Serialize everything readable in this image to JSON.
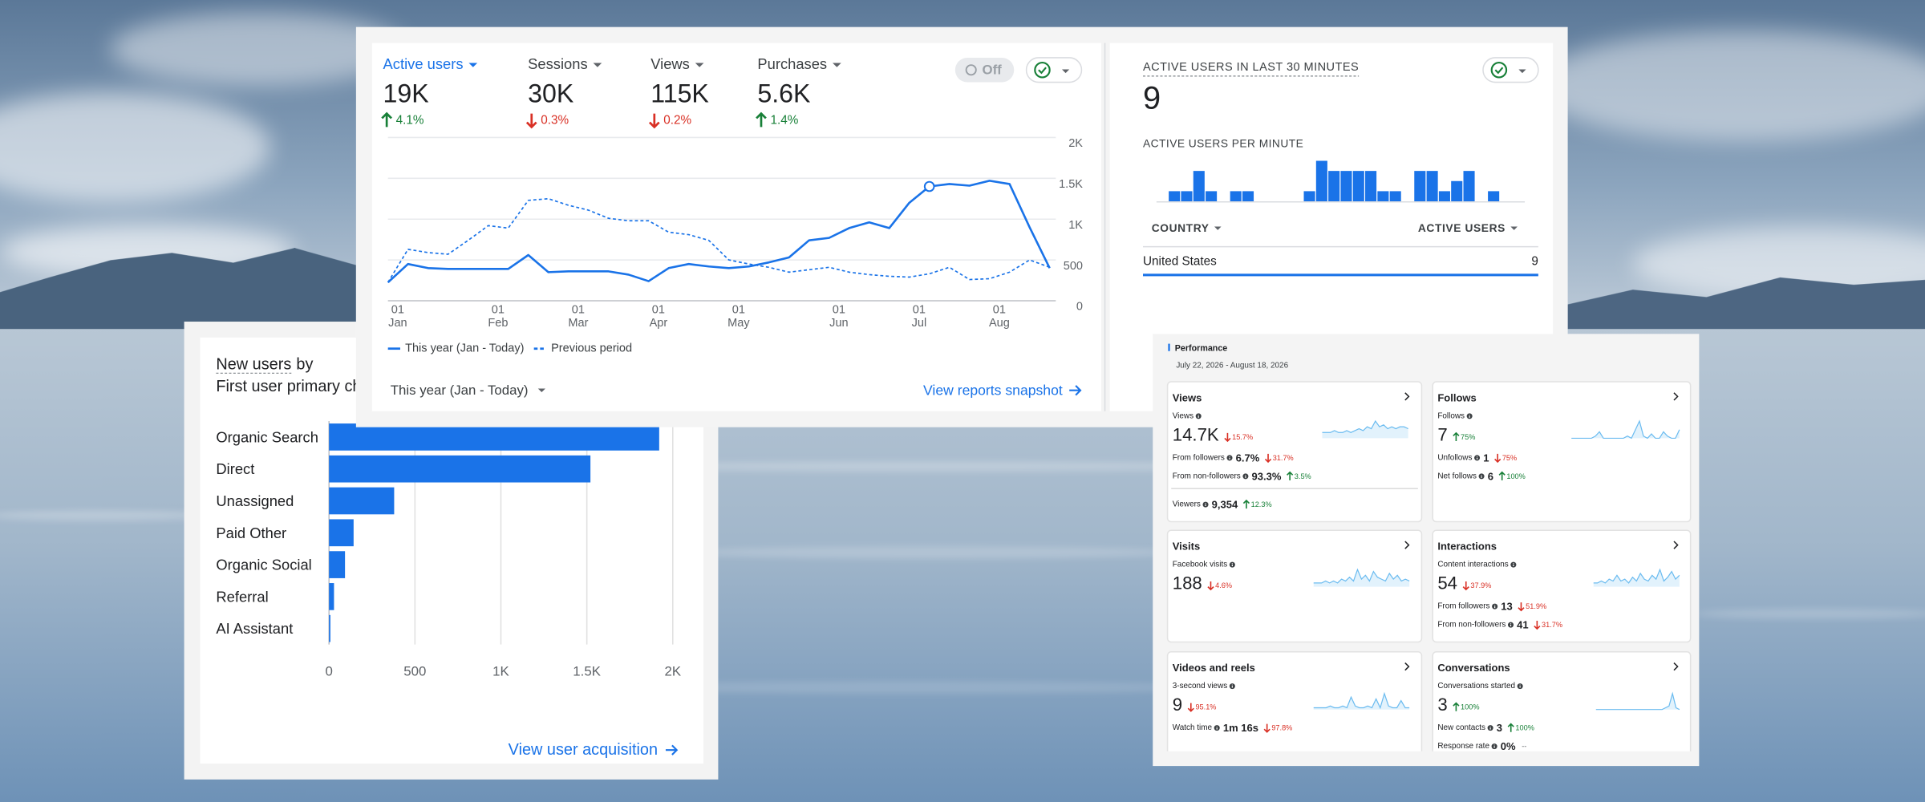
{
  "overview": {
    "metrics": [
      {
        "label": "Active users",
        "value": "19K",
        "change": "4.1%",
        "dir": "up"
      },
      {
        "label": "Sessions",
        "value": "30K",
        "change": "0.3%",
        "dir": "down"
      },
      {
        "label": "Views",
        "value": "115K",
        "change": "0.2%",
        "dir": "down"
      },
      {
        "label": "Purchases",
        "value": "5.6K",
        "change": "1.4%",
        "dir": "up"
      }
    ],
    "toggle": "Off",
    "period": "This year (Jan - Today)",
    "link": "View reports snapshot"
  },
  "realtime": {
    "title": "ACTIVE USERS IN LAST 30 MINUTES",
    "value": "9",
    "table": {
      "headers": [
        "COUNTRY",
        "ACTIVE USERS"
      ],
      "rows": [
        [
          "United States",
          9
        ]
      ]
    }
  },
  "acquisition": {
    "title_metric": "New users",
    "title_by": "by",
    "subtitle": "First user primary channel",
    "link": "View user acquisition"
  },
  "performance": {
    "title": "Performance",
    "date_range": "July 22, 2026 - August 18, 2026",
    "cards": [
      {
        "title": "Views",
        "metric": "Views",
        "value": "14.7K",
        "change": "15.7%",
        "dir": "down",
        "rows": [
          {
            "label": "From followers",
            "value": "6.7%",
            "change": "31.7%",
            "dir": "down"
          },
          {
            "label": "From non-followers",
            "value": "93.3%",
            "change": "3.5%",
            "dir": "up"
          },
          {
            "label": "Viewers",
            "value": "9,354",
            "change": "12.3%",
            "dir": "up",
            "separated": true
          }
        ]
      },
      {
        "title": "Follows",
        "metric": "Follows",
        "value": "7",
        "change": "75%",
        "dir": "up",
        "rows": [
          {
            "label": "Unfollows",
            "value": "1",
            "change": "75%",
            "dir": "down"
          },
          {
            "label": "Net follows",
            "value": "6",
            "change": "100%",
            "dir": "up"
          }
        ]
      },
      {
        "title": "Visits",
        "metric": "Facebook visits",
        "value": "188",
        "change": "4.6%",
        "dir": "down",
        "rows": []
      },
      {
        "title": "Interactions",
        "metric": "Content interactions",
        "value": "54",
        "change": "37.9%",
        "dir": "down",
        "rows": [
          {
            "label": "From followers",
            "value": "13",
            "change": "51.9%",
            "dir": "down"
          },
          {
            "label": "From non-followers",
            "value": "41",
            "change": "31.7%",
            "dir": "down"
          }
        ]
      },
      {
        "title": "Videos and reels",
        "metric": "3-second views",
        "value": "9",
        "change": "95.1%",
        "dir": "down",
        "rows": [
          {
            "label": "Watch time",
            "value": "1m 16s",
            "change": "97.8%",
            "dir": "down"
          }
        ]
      },
      {
        "title": "Conversations",
        "metric": "Conversations started",
        "value": "3",
        "change": "100%",
        "dir": "up",
        "rows": [
          {
            "label": "New contacts",
            "value": "3",
            "change": "100%",
            "dir": "up"
          },
          {
            "label": "Response rate",
            "value": "0%",
            "change": "--"
          }
        ]
      }
    ]
  },
  "chart_data": [
    {
      "type": "line",
      "categories": [
        "01 Jan",
        null,
        null,
        null,
        null,
        "01 Feb",
        null,
        null,
        null,
        "01 Mar",
        null,
        null,
        null,
        "01 Apr",
        null,
        null,
        null,
        "01 May",
        null,
        null,
        null,
        null,
        "01 Jun",
        null,
        null,
        null,
        "01 Jul",
        null,
        null,
        null,
        "01 Aug",
        null,
        null,
        null
      ],
      "series": [
        {
          "name": "This year (Jan - Today)",
          "color": "#1a73e8",
          "dashed": false,
          "values": [
            225,
            450,
            400,
            390,
            390,
            390,
            390,
            560,
            350,
            360,
            360,
            360,
            320,
            240,
            400,
            450,
            420,
            400,
            420,
            470,
            530,
            740,
            770,
            890,
            960,
            890,
            1200,
            1400,
            1430,
            1410,
            1470,
            1430,
            900,
            400
          ]
        },
        {
          "name": "Previous period",
          "color": "#1a73e8",
          "dashed": true,
          "values": [
            225,
            630,
            590,
            570,
            740,
            920,
            890,
            1230,
            1250,
            1170,
            1110,
            1010,
            980,
            980,
            840,
            810,
            740,
            500,
            450,
            410,
            350,
            380,
            410,
            350,
            320,
            300,
            290,
            330,
            410,
            260,
            270,
            350,
            500,
            410
          ]
        }
      ],
      "highlight_index": 27,
      "ylim": [
        0,
        2000
      ],
      "yticks": [
        0,
        500,
        {
          "value": 1000,
          "label": "1K"
        },
        {
          "value": 1500,
          "label": "1.5K"
        },
        {
          "value": 2000,
          "label": "2K"
        }
      ],
      "grid": true
    },
    {
      "type": "bar",
      "orientation": "horizontal",
      "categories": [
        "Organic Search",
        "Direct",
        "Unassigned",
        "Paid Other",
        "Organic Social",
        "Referral",
        "AI Assistant"
      ],
      "values": [
        1921,
        1521,
        379,
        143,
        93,
        29,
        8
      ],
      "color": "#1a73e8",
      "xlim": [
        0,
        2000
      ],
      "xticks": [
        0,
        500,
        {
          "value": 1000,
          "label": "1K"
        },
        {
          "value": 1500,
          "label": "1.5K"
        },
        {
          "value": 2000,
          "label": "2K"
        }
      ],
      "grid": true
    },
    {
      "type": "bar",
      "title": "ACTIVE USERS PER MINUTE",
      "values": [
        0,
        1,
        1,
        3,
        1,
        0,
        1,
        1,
        0,
        0,
        0,
        0,
        1,
        4,
        3,
        3,
        3,
        3,
        1,
        1,
        0,
        3,
        3,
        1,
        2,
        3,
        0,
        1,
        0,
        0
      ],
      "color": "#1a73e8"
    },
    {
      "type": "area",
      "color": "#6cbcf0",
      "values": [
        3,
        3,
        3,
        4,
        3,
        3,
        4,
        3,
        4,
        5,
        4,
        6,
        5,
        9,
        6,
        7,
        5,
        6,
        5,
        6,
        6,
        5
      ]
    },
    {
      "type": "area",
      "color": "#6cbcf0",
      "values": [
        0,
        0,
        0,
        0,
        0,
        0,
        1,
        3,
        0,
        0,
        0,
        0,
        0,
        0,
        1,
        0,
        4,
        8,
        1,
        0,
        2,
        0,
        0,
        3,
        1,
        0,
        0,
        4
      ]
    },
    {
      "type": "area",
      "color": "#6cbcf0",
      "values": [
        2,
        2,
        2,
        3,
        2,
        3,
        2,
        4,
        3,
        5,
        3,
        9,
        4,
        6,
        3,
        8,
        5,
        4,
        3,
        7,
        4,
        6,
        3,
        4,
        3
      ]
    },
    {
      "type": "area",
      "color": "#6cbcf0",
      "values": [
        2,
        2,
        3,
        2,
        4,
        3,
        6,
        3,
        4,
        2,
        5,
        3,
        7,
        4,
        3,
        6,
        4,
        9,
        3,
        5,
        8,
        4,
        6
      ]
    },
    {
      "type": "area",
      "color": "#6cbcf0",
      "values": [
        1,
        1,
        1,
        1,
        2,
        1,
        1,
        2,
        1,
        7,
        2,
        1,
        1,
        2,
        1,
        6,
        1,
        9,
        2,
        1,
        1,
        5,
        1,
        1
      ]
    },
    {
      "type": "area",
      "color": "#6cbcf0",
      "values": [
        0,
        0,
        0,
        0,
        0,
        0,
        0,
        0,
        0,
        0,
        0,
        0,
        0,
        0,
        0,
        0,
        0,
        0,
        0,
        0,
        1,
        2,
        9,
        1,
        0
      ]
    }
  ]
}
